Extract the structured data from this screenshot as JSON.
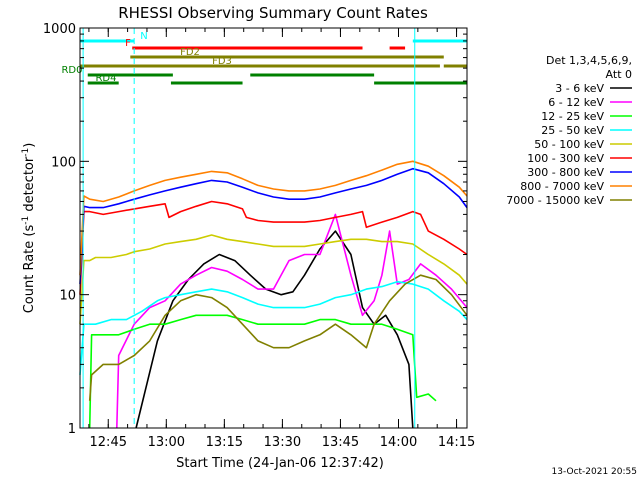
{
  "chart_data": {
    "type": "line",
    "title": "RHESSI Observing Summary Count Rates",
    "xlabel": "Start Time (24-Jan-06 12:37:42)",
    "ylabel": "Count Rate (s",
    "ylabel_sup": "-1",
    "ylabel_tail": " detector",
    "ylabel_tail_sup": "-1",
    "ylabel_close": ")",
    "y_scale": "log",
    "ylim": [
      1,
      1000
    ],
    "y_ticks": [
      {
        "value": 1,
        "label": "1"
      },
      {
        "value": 10,
        "label": "10"
      },
      {
        "value": 100,
        "label": "100"
      },
      {
        "value": 1000,
        "label": "1000"
      }
    ],
    "x_unit": "minutes after 12:37:42",
    "xlim": [
      0,
      100
    ],
    "x_ticks": [
      {
        "value": 7.3,
        "label": "12:45"
      },
      {
        "value": 22.3,
        "label": "13:00"
      },
      {
        "value": 37.3,
        "label": "13:15"
      },
      {
        "value": 52.3,
        "label": "13:30"
      },
      {
        "value": 67.3,
        "label": "13:45"
      },
      {
        "value": 82.3,
        "label": "14:00"
      },
      {
        "value": 97.3,
        "label": "14:15"
      }
    ],
    "legend_header": [
      "Det 1,3,4,5,6,9,",
      "Att 0"
    ],
    "legend_position": "right",
    "flags": [
      {
        "label": "N",
        "color": "#00ffff",
        "segments": [
          [
            0,
            14
          ],
          [
            86,
            100
          ]
        ]
      },
      {
        "label": "F",
        "color": "#ff0000",
        "segments": [
          [
            13.5,
            73
          ],
          [
            80,
            84
          ]
        ]
      },
      {
        "label": "FD2",
        "color": "#808000",
        "segments": [
          [
            13,
            94
          ]
        ]
      },
      {
        "label": "FD3",
        "color": "#808000",
        "segments": [
          [
            0,
            93
          ],
          [
            94,
            100
          ]
        ]
      },
      {
        "label": "RD0",
        "color": "#008000",
        "segments": [
          [
            2,
            24
          ],
          [
            44,
            76
          ]
        ]
      },
      {
        "label": "RD4",
        "color": "#008000",
        "segments": [
          [
            2,
            10
          ],
          [
            23.5,
            42
          ],
          [
            76,
            100
          ]
        ]
      }
    ],
    "vlines": [
      {
        "x": 0.8,
        "style": "solid",
        "color": "#00ffff"
      },
      {
        "x": 14,
        "style": "dashed",
        "color": "#00ffff"
      },
      {
        "x": 86.5,
        "style": "solid",
        "color": "#00ffff"
      },
      {
        "x": 100,
        "style": "dashed",
        "color": "#00ffff"
      }
    ],
    "series": [
      {
        "name": "3 - 6 keV",
        "color": "#000000",
        "x": [
          14.5,
          20,
          24,
          28,
          32,
          36,
          40,
          44,
          48,
          52,
          55,
          58,
          62,
          66,
          70,
          73,
          76,
          79,
          82,
          85,
          86
        ],
        "y": [
          1,
          4.5,
          9,
          13,
          17,
          20,
          18,
          14,
          11,
          10,
          10.5,
          14,
          22,
          30,
          20,
          8,
          6,
          7,
          5,
          3,
          1
        ]
      },
      {
        "name": "6 - 12 keV",
        "color": "#ff00ff",
        "x": [
          9.5,
          10,
          14,
          18,
          22,
          26,
          30,
          34,
          38,
          42,
          46,
          50,
          54,
          58,
          62,
          66,
          70,
          73,
          76,
          78,
          80,
          82,
          85,
          88,
          92,
          96,
          100
        ],
        "y": [
          1,
          3.5,
          6,
          8,
          9,
          12,
          14,
          16,
          15,
          13,
          11,
          11,
          18,
          20,
          20,
          40,
          14,
          7,
          9,
          14,
          30,
          12,
          13,
          17,
          14,
          11,
          8
        ]
      },
      {
        "name": "12 - 25 keV",
        "color": "#00ff00",
        "x": [
          2.5,
          3,
          6,
          10,
          14,
          18,
          22,
          26,
          30,
          34,
          38,
          42,
          46,
          50,
          54,
          58,
          62,
          66,
          70,
          74,
          78,
          82,
          86,
          87,
          90,
          92
        ],
        "y": [
          1,
          5,
          5,
          5,
          5.5,
          6,
          6,
          6.5,
          7,
          7,
          7,
          6.5,
          6,
          6,
          6,
          6,
          6.5,
          6.5,
          6,
          6,
          6,
          5.5,
          5,
          1.7,
          1.8,
          1.6
        ]
      },
      {
        "name": "25 - 50 keV",
        "color": "#00ffff",
        "x": [
          0,
          1,
          2.5,
          4,
          8,
          12,
          16,
          20,
          22,
          26,
          30,
          34,
          38,
          42,
          46,
          50,
          54,
          58,
          62,
          66,
          70,
          74,
          78,
          82,
          86,
          90,
          94,
          98,
          100
        ],
        "y": [
          2.5,
          6,
          6,
          6,
          6.5,
          6.5,
          7.5,
          9,
          9.5,
          10,
          10.5,
          11,
          10.5,
          9.5,
          8.5,
          8,
          8,
          8,
          8.5,
          9.5,
          10,
          11,
          11.5,
          12.5,
          12,
          11,
          9,
          7.5,
          6.5
        ]
      },
      {
        "name": "50 - 100 keV",
        "color": "#cccc00",
        "x": [
          0,
          1,
          2.5,
          4,
          8,
          12,
          14,
          18,
          22,
          26,
          30,
          34,
          38,
          42,
          46,
          50,
          54,
          58,
          62,
          66,
          70,
          74,
          78,
          82,
          86,
          90,
          94,
          98,
          100
        ],
        "y": [
          6,
          18,
          18,
          19,
          19,
          20,
          21,
          22,
          24,
          25,
          26,
          28,
          26,
          25,
          24,
          23,
          23,
          23,
          24,
          25,
          26,
          26,
          25,
          25,
          24,
          20,
          17,
          14,
          12
        ]
      },
      {
        "name": "100 - 300 keV",
        "color": "#ff0000",
        "x": [
          0,
          1,
          2.5,
          6,
          10,
          14,
          18,
          22,
          23,
          26,
          30,
          34,
          38,
          42,
          43,
          46,
          50,
          54,
          58,
          62,
          66,
          70,
          73,
          74,
          78,
          82,
          86,
          88,
          90,
          94,
          98,
          100
        ],
        "y": [
          10,
          42,
          42,
          40,
          42,
          44,
          46,
          48,
          38,
          42,
          46,
          50,
          48,
          44,
          38,
          36,
          35,
          35,
          35,
          36,
          38,
          40,
          42,
          32,
          35,
          38,
          42,
          40,
          30,
          26,
          22,
          20
        ]
      },
      {
        "name": "300 - 800 keV",
        "color": "#0000ff",
        "x": [
          0,
          1,
          2.5,
          6,
          10,
          14,
          18,
          22,
          26,
          30,
          34,
          38,
          42,
          46,
          50,
          54,
          58,
          62,
          66,
          70,
          74,
          78,
          82,
          86,
          90,
          94,
          98,
          100
        ],
        "y": [
          12,
          46,
          45,
          45,
          48,
          52,
          56,
          60,
          64,
          68,
          72,
          70,
          64,
          58,
          54,
          52,
          52,
          54,
          58,
          62,
          66,
          72,
          80,
          88,
          82,
          68,
          54,
          45
        ]
      },
      {
        "name": "800 - 7000 keV",
        "color": "#ff8000",
        "x": [
          0,
          1,
          2.5,
          6,
          10,
          14,
          18,
          22,
          26,
          30,
          34,
          38,
          42,
          46,
          50,
          54,
          58,
          62,
          66,
          70,
          74,
          78,
          82,
          86,
          90,
          94,
          98,
          100
        ],
        "y": [
          14,
          55,
          52,
          50,
          54,
          60,
          66,
          72,
          76,
          80,
          84,
          82,
          74,
          66,
          62,
          60,
          60,
          62,
          66,
          72,
          78,
          86,
          95,
          100,
          92,
          78,
          64,
          55
        ]
      },
      {
        "name": "7000 - 15000 keV",
        "color": "#808000",
        "x": [
          2.5,
          3,
          6,
          10,
          14,
          18,
          22,
          26,
          30,
          34,
          38,
          42,
          46,
          50,
          54,
          58,
          62,
          66,
          70,
          74,
          76,
          80,
          84,
          88,
          92,
          96,
          100
        ],
        "y": [
          1.6,
          2.5,
          3,
          3,
          3.5,
          4.5,
          7,
          9,
          10,
          9.5,
          8,
          6,
          4.5,
          4,
          4,
          4.5,
          5,
          6,
          5,
          4,
          6,
          9,
          12,
          14,
          13,
          10,
          7
        ]
      }
    ]
  },
  "footer": {
    "date_stamp": "13-Oct-2021 20:55"
  }
}
